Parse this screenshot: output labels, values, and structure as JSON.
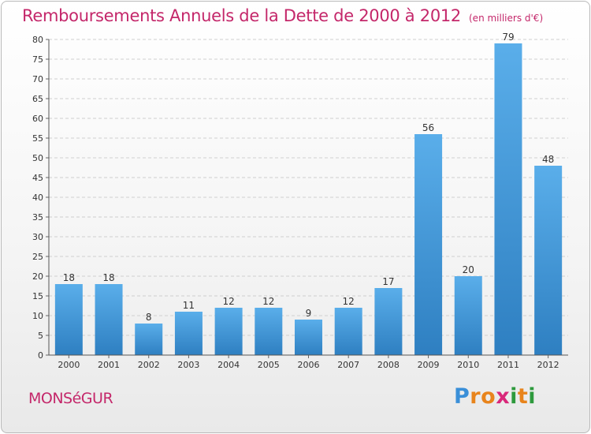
{
  "chart_data": {
    "type": "bar",
    "title": "Remboursements Annuels de la Dette de 2000 à 2012",
    "unit_note": "(en milliers d'€)",
    "categories": [
      "2000",
      "2001",
      "2002",
      "2003",
      "2004",
      "2005",
      "2006",
      "2007",
      "2008",
      "2009",
      "2010",
      "2011",
      "2012"
    ],
    "values": [
      18,
      18,
      8,
      11,
      12,
      12,
      9,
      12,
      17,
      56,
      20,
      79,
      48
    ],
    "data_labels": [
      "18",
      "18",
      "8",
      "11",
      "12",
      "12",
      "9",
      "12",
      "17",
      "56",
      "20",
      "79",
      "48"
    ],
    "ylim": [
      0,
      80
    ],
    "yticks": [
      0,
      5,
      10,
      15,
      20,
      25,
      30,
      35,
      40,
      45,
      50,
      55,
      60,
      65,
      70,
      75,
      80
    ],
    "grid": true,
    "bar_color_top": "#5aaeea",
    "bar_color_bottom": "#2e7fc1"
  },
  "commune": "MONSéGUR",
  "logo": {
    "letters": [
      "P",
      "r",
      "o",
      "x",
      "i",
      "t",
      "i"
    ],
    "colors": [
      "#3a8fd8",
      "#e8841c",
      "#e8841c",
      "#d9287a",
      "#2e9a3d",
      "#e8841c",
      "#2e9a3d"
    ]
  },
  "colors": {
    "accent": "#c4276a",
    "grid": "#cfcfcf"
  }
}
